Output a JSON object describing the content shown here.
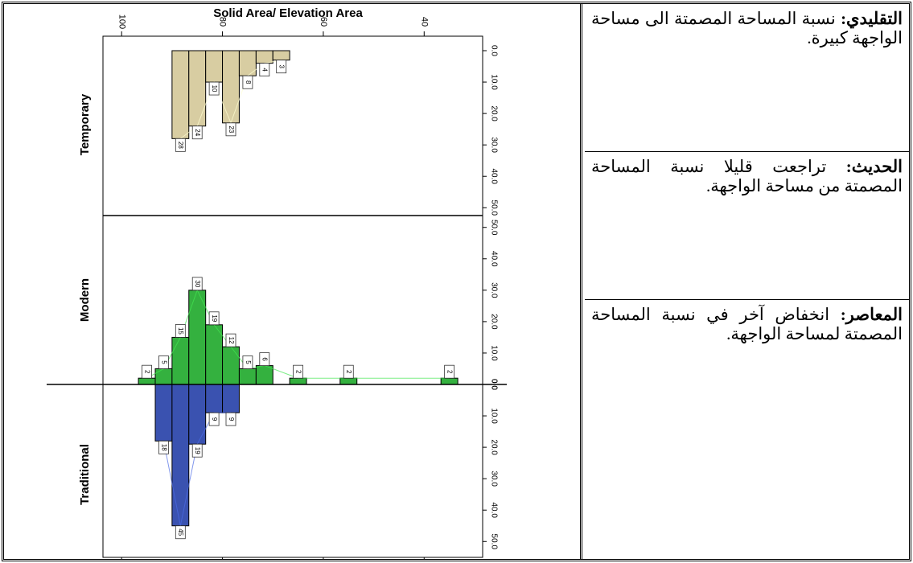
{
  "table": {
    "cells": [
      {
        "label": "التقليدي:",
        "text": "نسبة المساحة المصمتة الى مساحة الواجهة كبيرة."
      },
      {
        "label": "الحديث:",
        "text": "تراجعت قليلا نسبة المساحة المصمتة من مساحة الواجهة."
      },
      {
        "label": "المعاصر:",
        "text": "انخفاض آخر في نسبة المساحة المصمتة لمساحة الواجهة."
      }
    ]
  },
  "chart_data": {
    "type": "histogram",
    "title": "Solid Area/ Elevation Area",
    "bins": [
      96.67,
      93.33,
      90,
      86.67,
      83.33,
      80,
      76.67,
      73.33,
      70,
      66.67,
      63.33,
      60,
      56.67,
      53.33,
      50,
      46.67,
      43.33,
      40,
      36.67,
      33.33
    ],
    "series": [
      {
        "name": "Temporary",
        "color": "#d8cda2",
        "values": [
          0,
          0,
          28,
          24,
          10,
          23,
          8,
          4,
          3,
          0,
          0,
          0,
          0,
          0,
          0,
          0,
          0,
          0,
          0
        ]
      },
      {
        "name": "Modern",
        "color": "#34b13f",
        "values": [
          2,
          5,
          15,
          30,
          19,
          12,
          5,
          6,
          0,
          2,
          0,
          0,
          2,
          0,
          0,
          0,
          0,
          0,
          2
        ]
      },
      {
        "name": "Traditional",
        "color": "#3a52b0",
        "values": [
          0,
          18,
          45,
          19,
          9,
          9,
          0,
          0,
          0,
          0,
          0,
          0,
          0,
          0,
          0,
          0,
          0,
          0,
          0
        ]
      }
    ],
    "xlim": [
      103.7,
      28.4
    ],
    "xticks": [
      100,
      80,
      60,
      40
    ],
    "ylim": [
      0,
      53
    ],
    "yticks": [
      {
        "value": 0,
        "label": "0.0"
      },
      {
        "value": 10,
        "label": "10.0"
      },
      {
        "value": 20,
        "label": "20.0"
      },
      {
        "value": 30,
        "label": "30.0"
      },
      {
        "value": 40,
        "label": "40.0"
      },
      {
        "value": 50,
        "label": "50.0"
      }
    ]
  }
}
